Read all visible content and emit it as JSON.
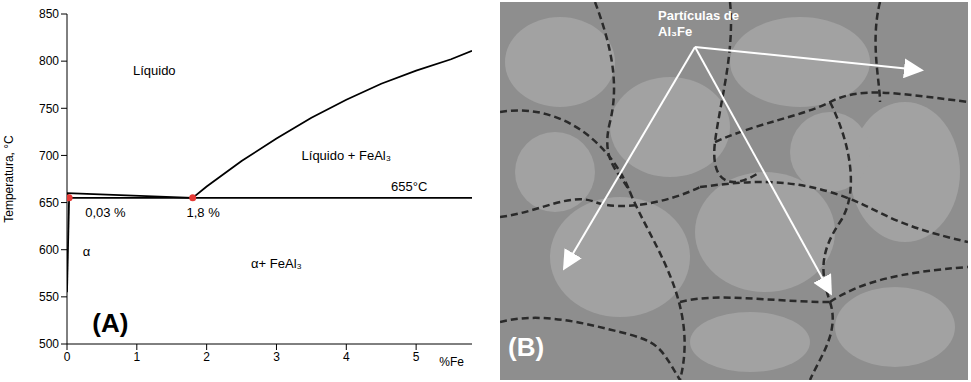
{
  "chart_data": {
    "type": "line",
    "panel": "(A)",
    "y_label": "Temperatura, °C",
    "x_label": "%Fe",
    "xlim": [
      0,
      5.8
    ],
    "xticks": [
      0,
      1,
      2,
      3,
      4,
      5
    ],
    "ylim": [
      500,
      850
    ],
    "yticks": [
      500,
      550,
      600,
      650,
      700,
      750,
      800,
      850
    ],
    "grid": false,
    "series": [
      {
        "type": "line",
        "color": "#000000",
        "line_style": "solid",
        "x": [
          0,
          1.8
        ],
        "values": [
          660,
          655
        ]
      },
      {
        "type": "line",
        "color": "#000000",
        "line_style": "solid",
        "x": [
          1.8,
          2,
          2.5,
          3,
          3.5,
          4,
          4.5,
          5,
          5.5,
          5.8
        ],
        "values": [
          655,
          667,
          694,
          718,
          740,
          759,
          776,
          790,
          802,
          811
        ]
      },
      {
        "type": "line",
        "color": "#000000",
        "line_style": "solid",
        "x": [
          0.03,
          5.8
        ],
        "values": [
          655,
          655
        ]
      },
      {
        "type": "line",
        "color": "#000000",
        "line_style": "solid",
        "x": [
          0,
          0.03
        ],
        "values": [
          660,
          655
        ]
      },
      {
        "type": "line",
        "color": "#000000",
        "line_style": "solid",
        "x": [
          0.03,
          0
        ],
        "values": [
          655,
          555
        ]
      },
      {
        "type": "scatter",
        "color": "#e53935",
        "marker": "o",
        "x": [
          0.03,
          1.8
        ],
        "values": [
          655,
          655
        ]
      }
    ],
    "annotations": [
      {
        "text": "Líquido",
        "x": 1.25,
        "y": 790
      },
      {
        "text": "Líquido + FeAl₃",
        "x": 4.0,
        "y": 700
      },
      {
        "text": "655°C",
        "x": 4.9,
        "y": 667
      },
      {
        "text": "0,03 %",
        "x": 0.55,
        "y": 640
      },
      {
        "text": "1,8 %",
        "x": 1.95,
        "y": 640
      },
      {
        "text": "α",
        "x": 0.28,
        "y": 598
      },
      {
        "text": "α+ FeAl₃",
        "x": 3.0,
        "y": 585
      }
    ]
  },
  "image_panel": {
    "panel": "(B)",
    "annotation": "Partículas de Al₃Fe"
  }
}
